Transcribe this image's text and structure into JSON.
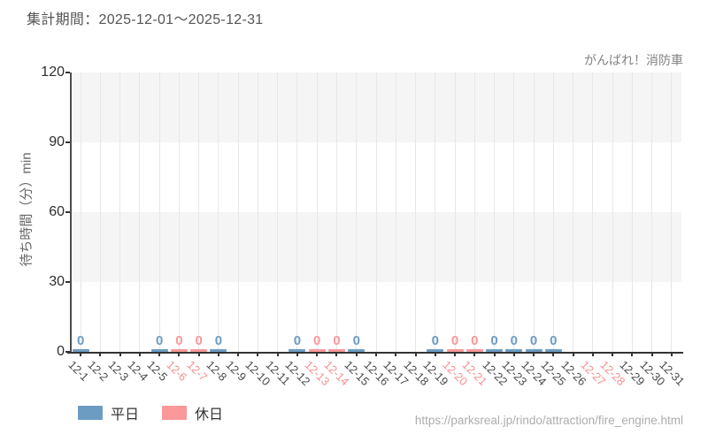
{
  "header": {
    "period_label": "集計期間：2025-12-01～2025-12-31",
    "attraction_name": "がんばれ！消防車"
  },
  "footer": {
    "url": "https://parksreal.jp/rindo/attraction/fire_engine.html"
  },
  "colors": {
    "weekday": "#6d9cc3",
    "holiday": "#fb9899",
    "holiday_tick_label": "#f59090",
    "band_gray": "#f5f5f5",
    "band_white": "#ffffff",
    "gridline": "#e7e7e7",
    "axis": "#333333"
  },
  "chart_data": {
    "type": "bar",
    "title": "集計期間：2025-12-01～2025-12-31",
    "annotation": "がんばれ！消防車",
    "xlabel": "",
    "ylabel": "待ち時間（分）min",
    "ylim": [
      0,
      120
    ],
    "yticks": [
      0,
      30,
      60,
      90,
      120
    ],
    "grid": true,
    "legend_position": "bottom-left",
    "categories": [
      "12-1",
      "12-2",
      "12-3",
      "12-4",
      "12-5",
      "12-6",
      "12-7",
      "12-8",
      "12-9",
      "12-10",
      "12-11",
      "12-12",
      "12-13",
      "12-14",
      "12-15",
      "12-16",
      "12-17",
      "12-18",
      "12-19",
      "12-20",
      "12-21",
      "12-22",
      "12-23",
      "12-24",
      "12-25",
      "12-26",
      "12-27",
      "12-28",
      "12-29",
      "12-30",
      "12-31"
    ],
    "holiday_categories": [
      "12-6",
      "12-7",
      "12-13",
      "12-14",
      "12-20",
      "12-21",
      "12-27",
      "12-28"
    ],
    "series": [
      {
        "name": "平日",
        "color": "#6d9cc3",
        "points": [
          {
            "category": "12-1",
            "value": 0
          },
          {
            "category": "12-5",
            "value": 0
          },
          {
            "category": "12-8",
            "value": 0
          },
          {
            "category": "12-12",
            "value": 0
          },
          {
            "category": "12-15",
            "value": 0
          },
          {
            "category": "12-19",
            "value": 0
          },
          {
            "category": "12-22",
            "value": 0
          },
          {
            "category": "12-23",
            "value": 0
          },
          {
            "category": "12-24",
            "value": 0
          },
          {
            "category": "12-25",
            "value": 0
          }
        ]
      },
      {
        "name": "休日",
        "color": "#fb9899",
        "points": [
          {
            "category": "12-6",
            "value": 0
          },
          {
            "category": "12-7",
            "value": 0
          },
          {
            "category": "12-13",
            "value": 0
          },
          {
            "category": "12-14",
            "value": 0
          },
          {
            "category": "12-20",
            "value": 0
          },
          {
            "category": "12-21",
            "value": 0
          }
        ]
      }
    ]
  }
}
